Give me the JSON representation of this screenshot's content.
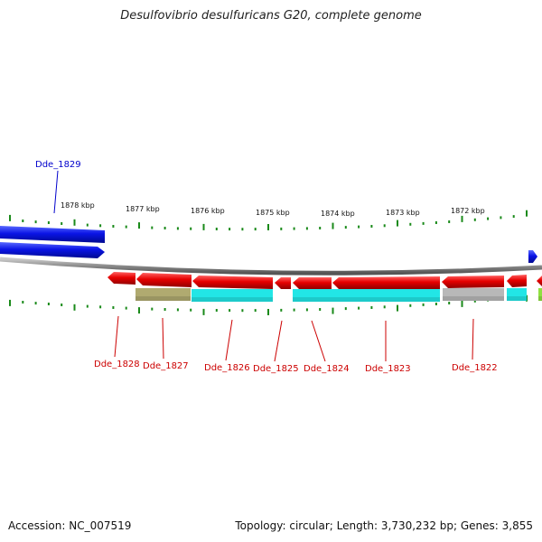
{
  "title": "Desulfovibrio desulfuricans G20, complete genome",
  "footer": {
    "accession": "Accession: NC_007519",
    "summary": "Topology: circular; Length: 3,730,232 bp; Genes: 3,855"
  },
  "colors": {
    "forward_gene": "#0a14e6",
    "reverse_gene": "#e60000",
    "forward_label": "#0000cc",
    "reverse_label": "#cc0000",
    "backbone": "#8a8a8a",
    "tick": "#1a8a1a"
  },
  "scale_labels": [
    "1878 kbp",
    "1877 kbp",
    "1876 kbp",
    "1875 kbp",
    "1874 kbp",
    "1873 kbp",
    "1872 kbp"
  ],
  "gene_labels": [
    {
      "text": "Dde_1829",
      "strand": "forward"
    },
    {
      "text": "Dde_1828",
      "strand": "reverse"
    },
    {
      "text": "Dde_1827",
      "strand": "reverse"
    },
    {
      "text": "Dde_1826",
      "strand": "reverse"
    },
    {
      "text": "Dde_1825",
      "strand": "reverse"
    },
    {
      "text": "Dde_1824",
      "strand": "reverse"
    },
    {
      "text": "Dde_1823",
      "strand": "reverse"
    },
    {
      "text": "Dde_1822",
      "strand": "reverse"
    }
  ],
  "annotation_colors": [
    "#b0aa70",
    "#22e6e6",
    "#22e6e6",
    "#b8b8b8",
    "#22e6e6",
    "#90e040"
  ]
}
